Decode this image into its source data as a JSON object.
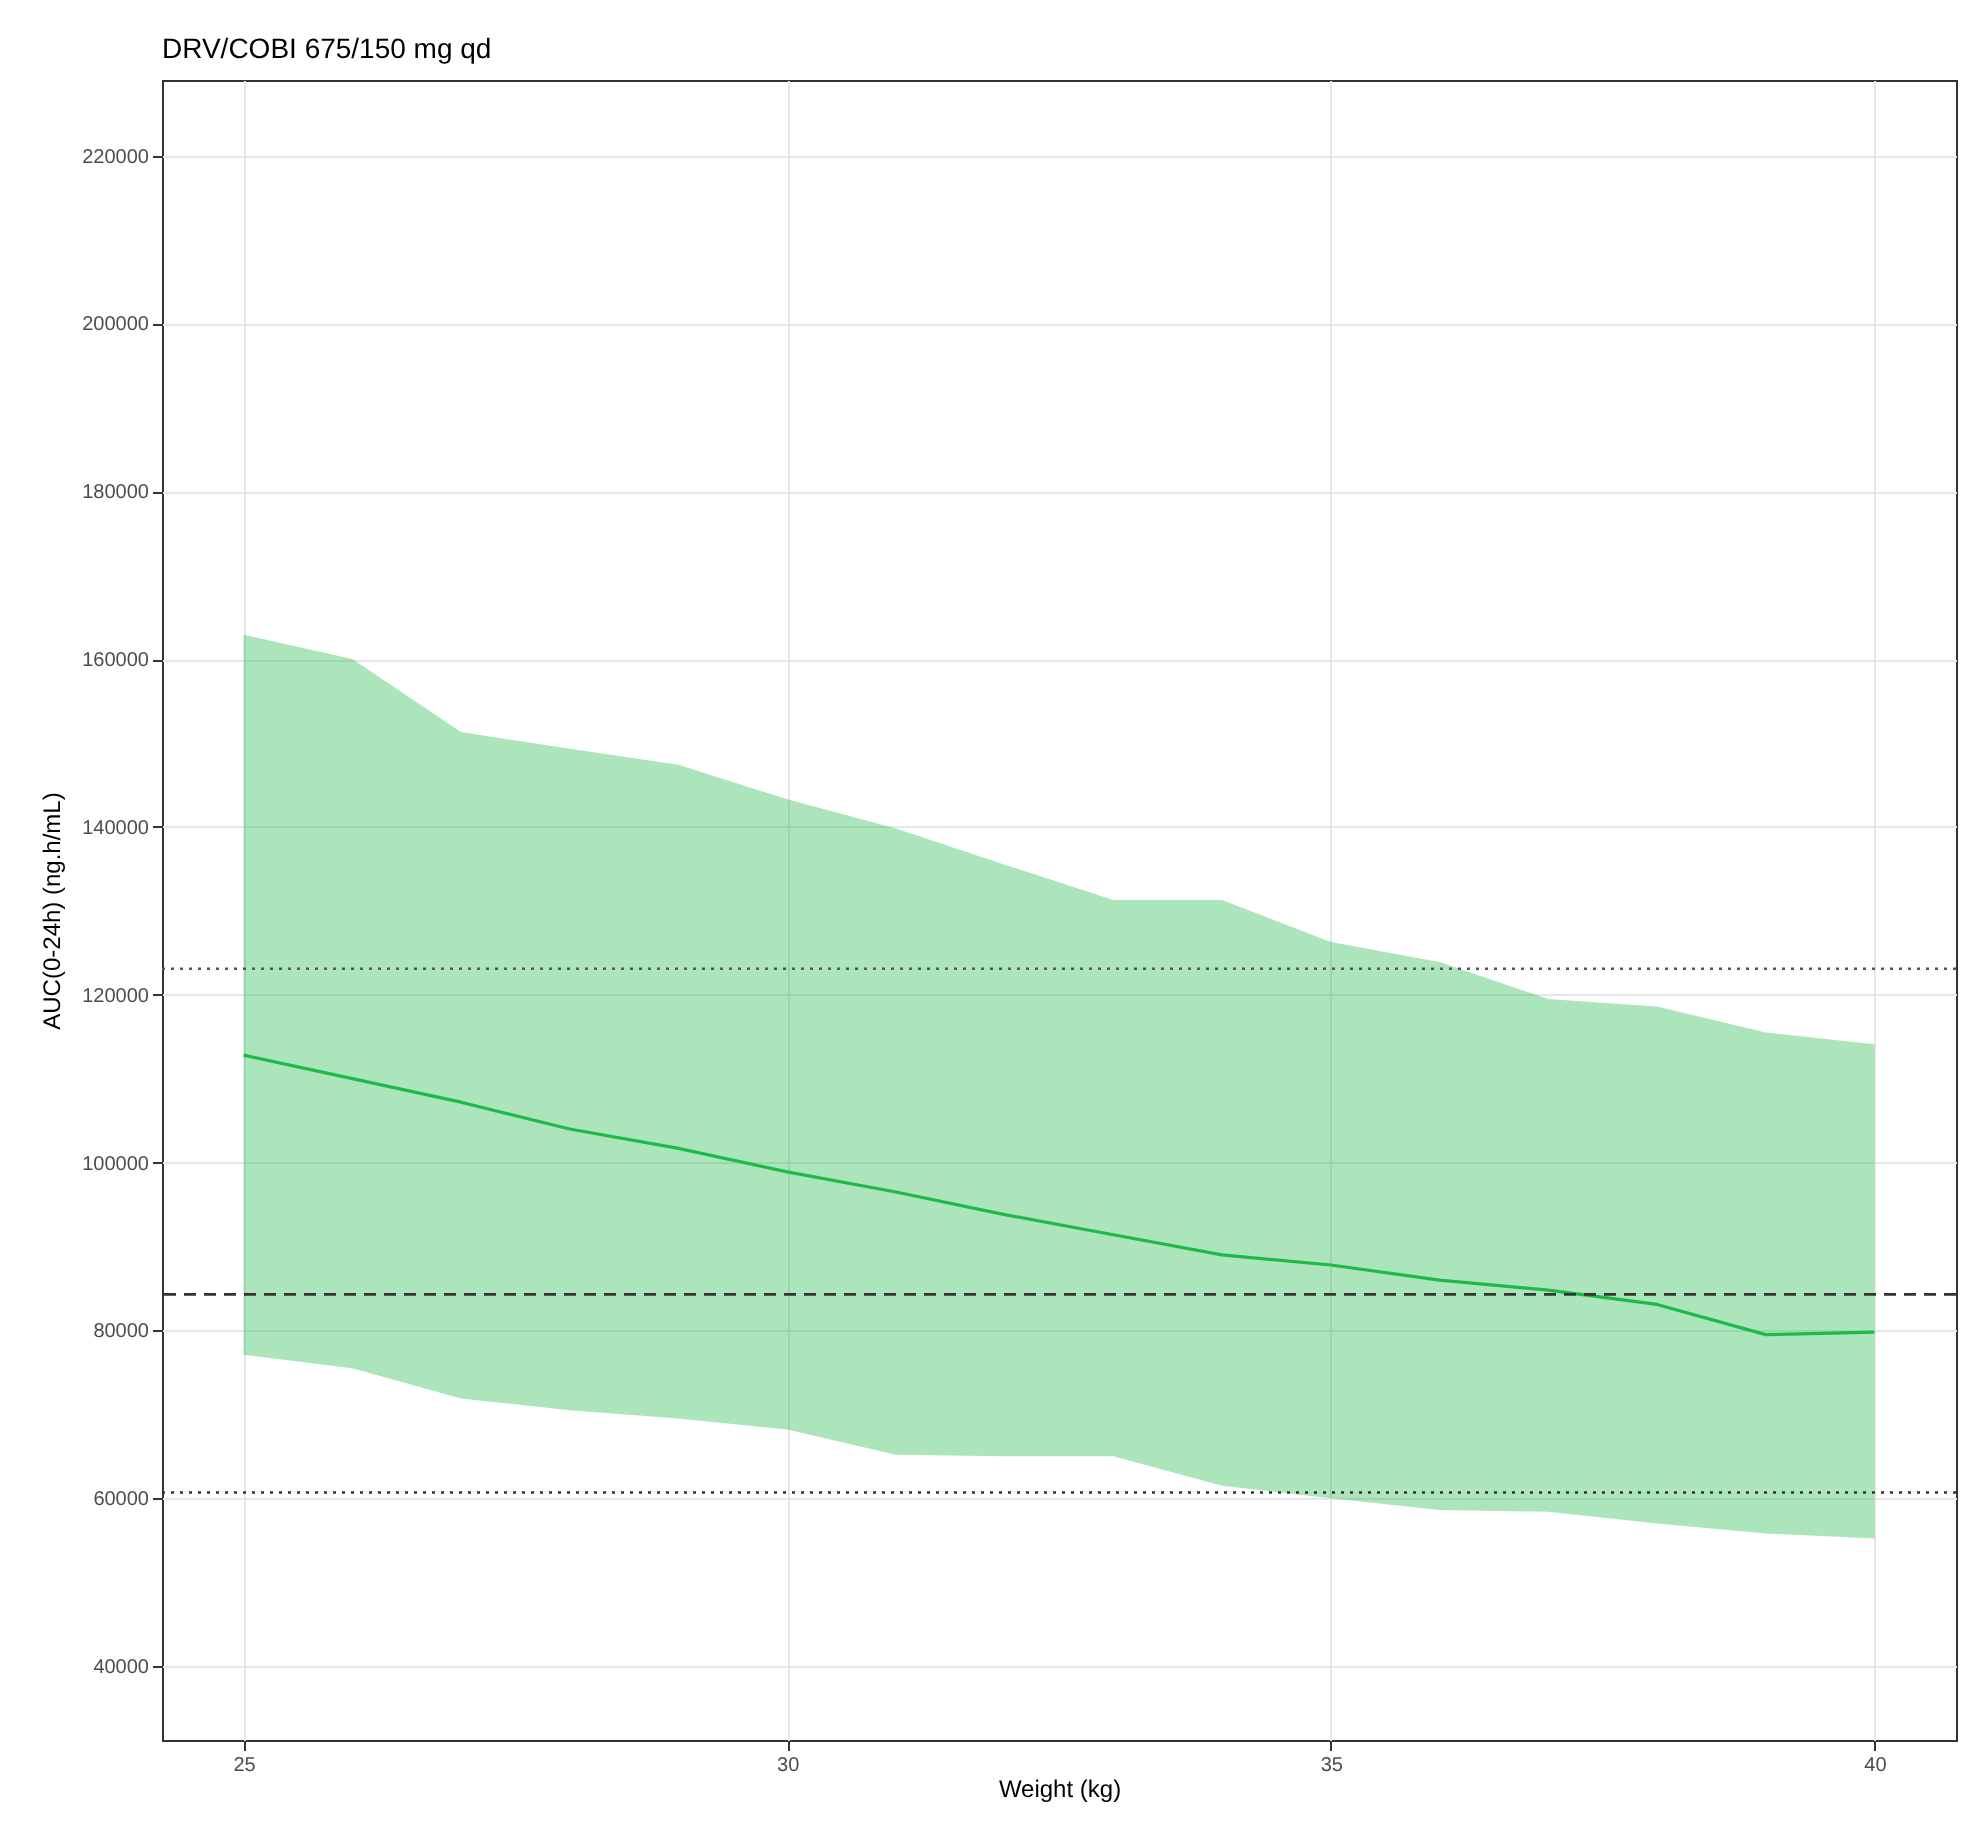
{
  "chart_data": {
    "type": "line",
    "title": "DRV/COBI 675/150 mg qd",
    "xlabel": "Weight (kg)",
    "ylabel": "AUC(0-24h) (ng.h/mL)",
    "x": [
      25,
      26,
      27,
      28,
      29,
      30,
      31,
      32,
      33,
      34,
      35,
      36,
      37,
      38,
      39,
      40
    ],
    "series": [
      {
        "color": "#1fb84a",
        "values": [
          112800,
          110000,
          107200,
          104000,
          101700,
          98900,
          96500,
          93800,
          91400,
          89000,
          87800,
          86000,
          84800,
          83100,
          79500,
          79800
        ],
        "lower": [
          77100,
          75500,
          71900,
          70500,
          69500,
          68200,
          65200,
          65000,
          65000,
          61500,
          60000,
          58600,
          58400,
          57000,
          55800,
          55200
        ],
        "upper": [
          162900,
          160000,
          151300,
          149300,
          147400,
          143300,
          139800,
          135500,
          131300,
          131300,
          126300,
          123900,
          119500,
          118600,
          115500,
          114100
        ]
      }
    ],
    "xlim": [
      24.25,
      40.75
    ],
    "xticks": [
      25,
      30,
      35,
      40
    ],
    "ylim": [
      31200,
      229000
    ],
    "yticks": [
      40000,
      60000,
      80000,
      100000,
      120000,
      140000,
      160000,
      180000,
      200000,
      220000
    ],
    "grid": true,
    "ref_lines": [
      {
        "axis": "y",
        "value": 123100,
        "color": "#555555",
        "line_style": "dotted"
      },
      {
        "axis": "y",
        "value": 84300,
        "color": "#333333",
        "line_style": "dashed"
      },
      {
        "axis": "y",
        "value": 60700,
        "color": "#333333",
        "line_style": "dotted"
      }
    ]
  }
}
